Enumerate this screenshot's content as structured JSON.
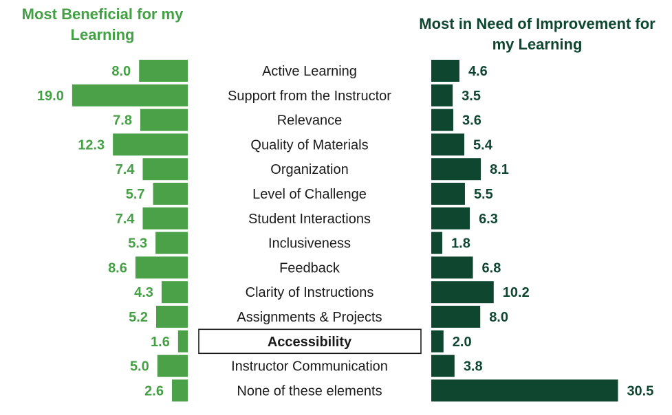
{
  "chart_data": {
    "type": "bar",
    "orientation": "horizontal",
    "layout": "butterfly",
    "categories": [
      "Active Learning",
      "Support from the Instructor",
      "Relevance",
      "Quality of Materials",
      "Organization",
      "Level of Challenge",
      "Student Interactions",
      "Inclusiveness",
      "Feedback",
      "Clarity of Instructions",
      "Assignments & Projects",
      "Accessibility",
      "Instructor Communication",
      "None of these elements"
    ],
    "highlighted_category": "Accessibility",
    "series": [
      {
        "name": "Most Beneficial for my Learning",
        "values": [
          8.0,
          19.0,
          7.8,
          12.3,
          7.4,
          5.7,
          7.4,
          5.3,
          8.6,
          4.3,
          5.2,
          1.6,
          5.0,
          2.6
        ],
        "labels": [
          "8.0",
          "19.0",
          "7.8",
          "12.3",
          "7.4",
          "5.7",
          "7.4",
          "5.3",
          "8.6",
          "4.3",
          "5.2",
          "1.6",
          "5.0",
          "2.6"
        ],
        "color": "#4aa147",
        "text_color": "#44a044",
        "direction": "left"
      },
      {
        "name": "Most in Need of Improvement for my Learning",
        "values": [
          4.6,
          3.5,
          3.6,
          5.4,
          8.1,
          5.5,
          6.3,
          1.8,
          6.8,
          10.2,
          8.0,
          2.0,
          3.8,
          30.5
        ],
        "labels": [
          "4.6",
          "3.5",
          "3.6",
          "5.4",
          "8.1",
          "5.5",
          "6.3",
          "1.8",
          "6.8",
          "10.2",
          "8.0",
          "2.0",
          "3.8",
          "30.5"
        ],
        "color": "#0f4630",
        "text_color": "#0f4630",
        "direction": "right"
      }
    ],
    "title_left": "Most Beneficial for my Learning",
    "title_right": "Most in Need of Improvement for my Learning",
    "legend": "none",
    "grid": false,
    "axes_visible": false
  }
}
